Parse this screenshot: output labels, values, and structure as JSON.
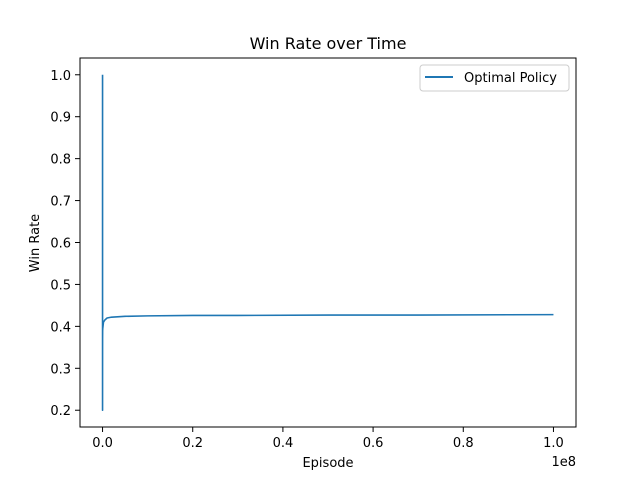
{
  "chart_data": {
    "type": "line",
    "title": "Win Rate over Time",
    "xlabel": "Episode",
    "ylabel": "Win Rate",
    "x_offset_label": "1e8",
    "x_scale": 100000000,
    "xlim": [
      -5000000,
      105000000
    ],
    "ylim": [
      0.16,
      1.04
    ],
    "x_ticks": [
      0,
      20000000,
      40000000,
      60000000,
      80000000,
      100000000
    ],
    "x_tick_labels": [
      "0.0",
      "0.2",
      "0.4",
      "0.6",
      "0.8",
      "1.0"
    ],
    "y_ticks": [
      0.2,
      0.3,
      0.4,
      0.5,
      0.6,
      0.7,
      0.8,
      0.9,
      1.0
    ],
    "y_tick_labels": [
      "0.2",
      "0.3",
      "0.4",
      "0.5",
      "0.6",
      "0.7",
      "0.8",
      "0.9",
      "1.0"
    ],
    "grid": false,
    "legend_position": "top-right",
    "colors": {
      "series": "#1f77b4",
      "axis": "#000000"
    },
    "series": [
      {
        "name": "Optimal Policy",
        "x": [
          1,
          10,
          50,
          100,
          200,
          500,
          1000,
          2000,
          5000,
          10000,
          20000,
          50000,
          100000,
          200000,
          500000,
          1000000,
          2000000,
          5000000,
          10000000,
          20000000,
          30000000,
          50000000,
          70000000,
          100000000
        ],
        "y": [
          1.0,
          0.5,
          0.3,
          0.2,
          0.35,
          0.3,
          0.25,
          0.2,
          0.33,
          0.37,
          0.39,
          0.395,
          0.4,
          0.41,
          0.415,
          0.42,
          0.422,
          0.424,
          0.425,
          0.426,
          0.426,
          0.427,
          0.427,
          0.428
        ]
      }
    ]
  }
}
